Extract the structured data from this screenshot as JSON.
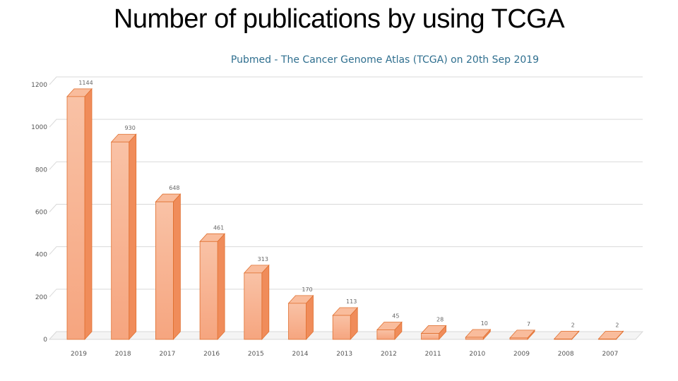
{
  "slide": {
    "title": "Number of publications by using TCGA"
  },
  "chart_data": {
    "type": "bar",
    "title": "Pubmed - The Cancer Genome Atlas (TCGA) on 20th Sep 2019",
    "categories": [
      "2019",
      "2018",
      "2017",
      "2016",
      "2015",
      "2014",
      "2013",
      "2012",
      "2011",
      "2010",
      "2009",
      "2008",
      "2007"
    ],
    "values": [
      1144,
      930,
      648,
      461,
      313,
      170,
      113,
      45,
      28,
      10,
      7,
      2,
      2
    ],
    "data_labels": [
      "1144",
      "930",
      "648",
      "461",
      "313",
      "170",
      "113",
      "45",
      "28",
      "10",
      "7",
      "2",
      "2"
    ],
    "y_ticks": [
      0,
      200,
      400,
      600,
      800,
      1000,
      1200
    ],
    "ylim": [
      0,
      1200
    ],
    "grid": true,
    "style": "3d-column",
    "colors": {
      "bar_front": "#f6a57f",
      "bar_front_light": "#f9c2a6",
      "bar_side": "#f08c5a",
      "bar_top": "#f9bc9c",
      "bar_outline": "#e07030",
      "grid": "#d9d9d9",
      "title": "#2f6f8f"
    }
  }
}
